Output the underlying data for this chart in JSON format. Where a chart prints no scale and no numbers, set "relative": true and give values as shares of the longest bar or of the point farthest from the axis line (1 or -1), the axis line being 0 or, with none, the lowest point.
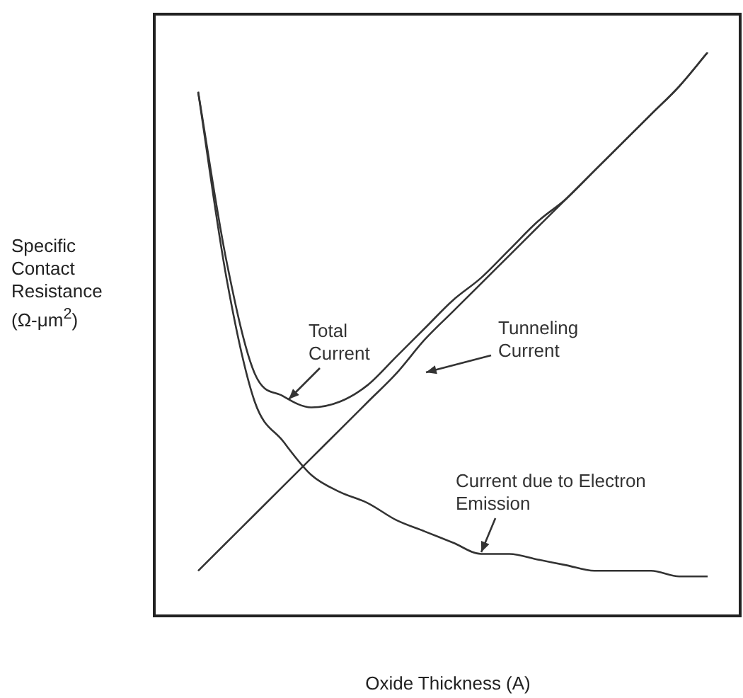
{
  "chart_data": {
    "type": "line",
    "relative": true,
    "xlabel": "Oxide Thickness (A)",
    "ylabel": "Specific Contact Resistance (Ω-μm$^{2}$)",
    "categories": [
      null,
      null,
      null,
      null,
      null,
      null,
      null,
      null,
      null,
      null,
      null,
      null,
      null,
      null,
      null,
      null,
      null,
      null,
      null
    ],
    "series": [
      {
        "name": "Total Current",
        "color": "#333333",
        "values": [
          0.93,
          0.63,
          0.43,
          0.39,
          0.37,
          0.38,
          0.41,
          0.46,
          0.51,
          0.56,
          0.6,
          0.65,
          0.7,
          0.74,
          0.79,
          0.84,
          0.89,
          0.94,
          1
        ]
      },
      {
        "name": "Tunneling Current",
        "color": "#333333",
        "values": [
          0.08,
          0.13,
          0.18,
          0.23,
          0.28,
          0.33,
          0.38,
          0.43,
          0.49,
          0.54,
          0.59,
          0.64,
          0.69,
          0.74,
          0.79,
          0.84,
          0.89,
          0.94,
          1
        ]
      },
      {
        "name": "Current due to Electron Emission",
        "color": "#333333",
        "values": [
          0.93,
          0.6,
          0.38,
          0.31,
          0.25,
          0.22,
          0.2,
          0.17,
          0.15,
          0.13,
          0.11,
          0.11,
          0.1,
          0.09,
          0.08,
          0.08,
          0.08,
          0.07,
          0.07
        ]
      }
    ],
    "legend": false,
    "marker": "none",
    "line_style": "solid"
  }
}
